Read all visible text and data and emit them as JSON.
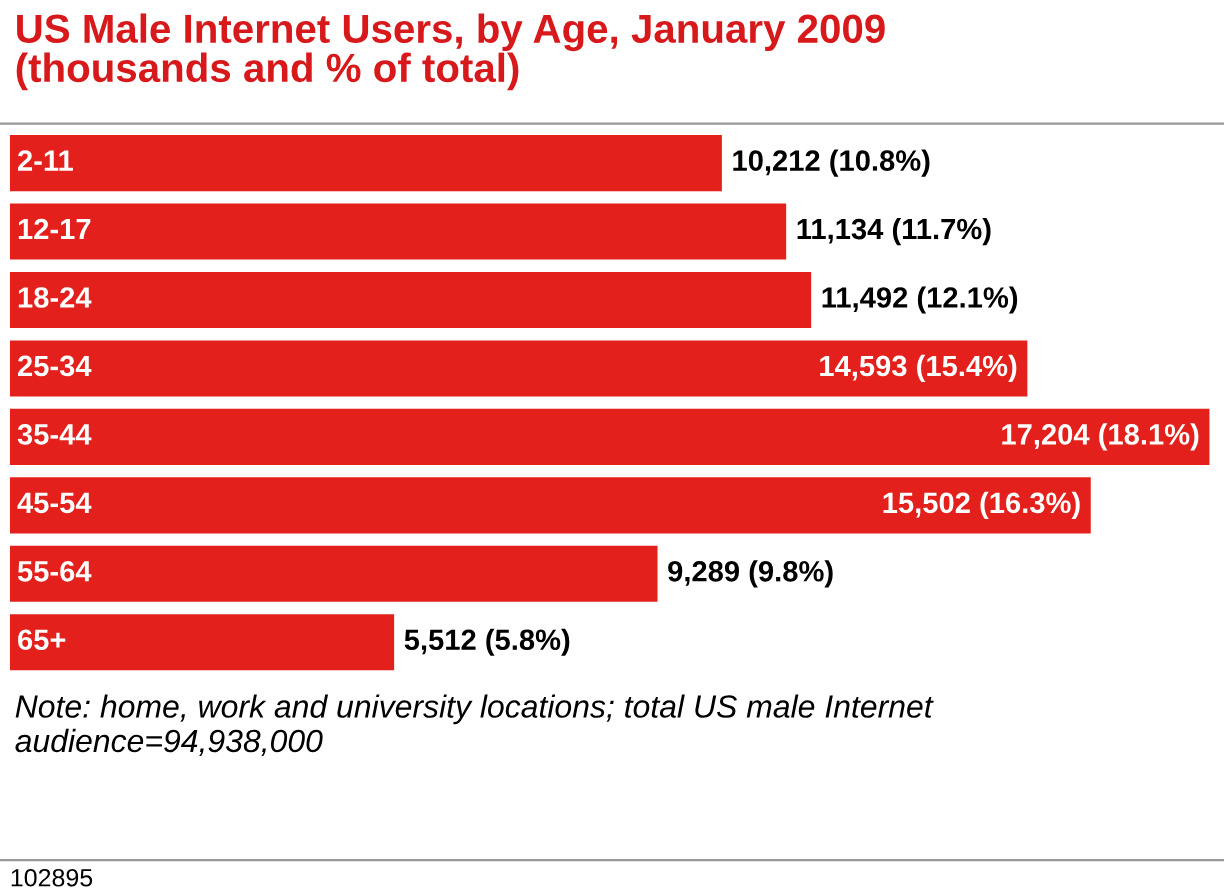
{
  "chart_data": {
    "type": "bar",
    "orientation": "horizontal",
    "title": "US Male Internet Users, by Age, January 2009\n(thousands and % of total)",
    "categories": [
      "2-11",
      "12-17",
      "18-24",
      "25-34",
      "35-44",
      "45-54",
      "55-64",
      "65+"
    ],
    "values": [
      10212,
      11134,
      11492,
      14593,
      17204,
      15502,
      9289,
      5512
    ],
    "value_labels": [
      "10,212 (10.8%)",
      "11,134 (11.7%)",
      "11,492 (12.1%)",
      "14,593 (15.4%)",
      "17,204 (18.1%)",
      "15,502 (16.3%)",
      "9,289 (9.8%)",
      "5,512 (5.8%)"
    ],
    "color": "#e3201b",
    "annotations": [
      "Note: home, work and university locations; total US male Internet audience=94,938,000",
      "102895"
    ]
  }
}
